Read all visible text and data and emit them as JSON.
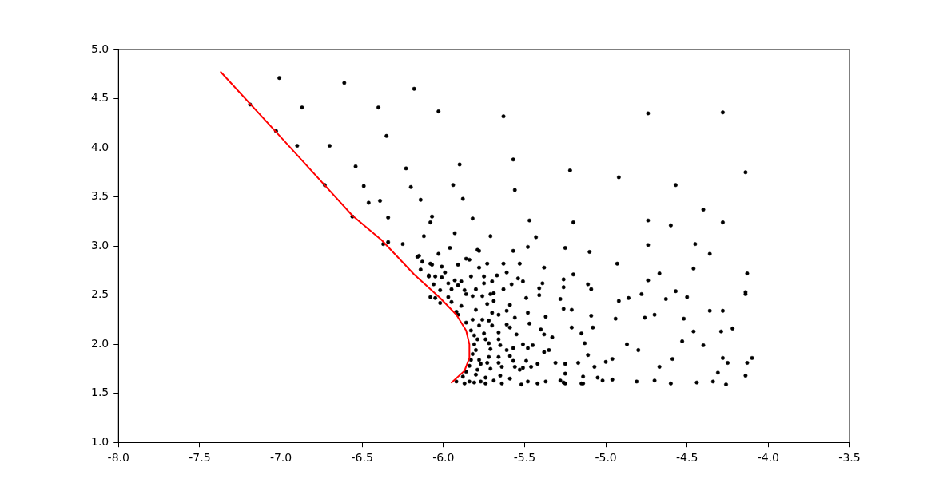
{
  "chart_data": {
    "type": "scatter",
    "xlim": [
      -8.0,
      -3.5
    ],
    "ylim": [
      1.0,
      5.0
    ],
    "xticks": [
      {
        "value": -8,
        "label": "-8.0"
      },
      {
        "value": -7.5,
        "label": "-7.5"
      },
      {
        "value": -7,
        "label": "-7.0"
      },
      {
        "value": -6.5,
        "label": "-6.5"
      },
      {
        "value": -6,
        "label": "-6.0"
      },
      {
        "value": -5.5,
        "label": "-5.5"
      },
      {
        "value": -5,
        "label": "-5.0"
      },
      {
        "value": -4.5,
        "label": "-4.5"
      },
      {
        "value": -4,
        "label": "-4.0"
      },
      {
        "value": -3.5,
        "label": "-3.5"
      }
    ],
    "yticks": [
      {
        "value": 1,
        "label": "1.0"
      },
      {
        "value": 1.5,
        "label": "1.5"
      },
      {
        "value": 2,
        "label": "2.0"
      },
      {
        "value": 2.5,
        "label": "2.5"
      },
      {
        "value": 3,
        "label": "3.0"
      },
      {
        "value": 3.5,
        "label": "3.5"
      },
      {
        "value": 4,
        "label": "4.0"
      },
      {
        "value": 4.5,
        "label": "4.5"
      },
      {
        "value": 5,
        "label": "5.0"
      }
    ],
    "grid": false,
    "legend": false,
    "series": [
      {
        "type": "scatter",
        "marker": "circle",
        "color": "#000000",
        "x": [
          -7.01,
          -6.61,
          -6.18,
          -6.03,
          -5.63,
          -4.74,
          -4.28,
          -6.87,
          -6.4,
          -6.35,
          -6.7,
          -5.9,
          -5.57,
          -6.54,
          -6.23,
          -5.22,
          -4.14,
          -4.92,
          -5.94,
          -6.49,
          -6.2,
          -4.57,
          -5.56,
          -5.88,
          -6.39,
          -6.46,
          -6.14,
          -4.4,
          -5.82,
          -6.07,
          -5.47,
          -5.2,
          -4.74,
          -4.28,
          -6.08,
          -4.6,
          -6.34,
          -5.93,
          -6.12,
          -5.71,
          -5.43,
          -4.74,
          -4.45,
          -4.36,
          -6.25,
          -6.34,
          -5.79,
          -5.48,
          -5.25,
          -5.1,
          -4.13,
          -6.03,
          -6.16,
          -5.86,
          -5.63,
          -5.38,
          -6.07,
          -5.99,
          -5.78,
          -4.93,
          -4.67,
          -4.46,
          -6.09,
          -5.93,
          -5.7,
          -5.54,
          -5.26,
          -5.11,
          -4.74,
          -4.57,
          -5.95,
          -4.14,
          -4.14,
          -5.69,
          -5.41,
          -5.28,
          -4.86,
          -4.78,
          -4.5,
          -6.05,
          -4.92,
          -4.63,
          -4.36,
          -4.28,
          -4.7,
          -4.94,
          -4.76,
          -4.52,
          -4.22,
          -4.29,
          -4.46,
          -5.15,
          -5.38,
          -4.53,
          -4.87,
          -4.4,
          -4.8,
          -4.1,
          -4.13,
          -4.96,
          -5.0,
          -4.59,
          -4.67,
          -4.28,
          -4.25,
          -4.31,
          -4.14,
          -4.81,
          -4.6,
          -4.34,
          -4.26,
          -4.44,
          -4.7,
          -4.96,
          -5.02,
          -5.15,
          -5.26,
          -5.25,
          -5.96,
          -5.78,
          -5.57,
          -6.15,
          -5.84,
          -5.73,
          -5.53,
          -6.13,
          -6.08,
          -6.01,
          -5.91,
          -6.14,
          -6.09,
          -6.05,
          -6.01,
          -5.89,
          -5.83,
          -5.75,
          -5.67,
          -5.61,
          -5.51,
          -5.2,
          -6.06,
          -5.97,
          -5.91,
          -5.75,
          -5.8,
          -5.63,
          -5.58,
          -5.39,
          -6.02,
          -5.87,
          -5.86,
          -5.97,
          -5.82,
          -5.76,
          -5.71,
          -5.69,
          -5.59,
          -5.49,
          -5.41,
          -5.26,
          -5.09,
          -6.02,
          -5.95,
          -5.89,
          -5.8,
          -5.73,
          -5.7,
          -5.66,
          -5.61,
          -5.56,
          -5.48,
          -5.37,
          -5.26,
          -5.21,
          -5.09,
          -5.92,
          -5.91,
          -5.86,
          -5.82,
          -5.78,
          -5.76,
          -5.72,
          -5.7,
          -5.66,
          -5.61,
          -5.59,
          -5.55,
          -5.47,
          -5.4,
          -5.33,
          -5.21,
          -5.08,
          -5.83,
          -5.81,
          -5.79,
          -5.81,
          -5.8,
          -5.75,
          -5.74,
          -5.72,
          -5.71,
          -5.66,
          -5.65,
          -5.61,
          -5.57,
          -5.51,
          -5.48,
          -5.45,
          -5.38,
          -5.35,
          -5.13,
          -5.11,
          -5.82,
          -5.83,
          -5.84,
          -5.86,
          -5.88,
          -5.78,
          -5.77,
          -5.79,
          -5.8,
          -5.72,
          -5.73,
          -5.71,
          -5.74,
          -5.66,
          -5.66,
          -5.64,
          -5.65,
          -5.59,
          -5.57,
          -5.56,
          -5.53,
          -5.49,
          -5.51,
          -5.46,
          -5.42,
          -5.31,
          -5.25,
          -5.17,
          -5.07,
          -5.92,
          -5.87,
          -5.84,
          -5.81,
          -5.77,
          -5.74,
          -5.69,
          -5.64,
          -5.59,
          -5.52,
          -5.48,
          -5.42,
          -5.37,
          -5.28,
          -5.25,
          -5.14,
          -5.14,
          -5.05,
          -7.19,
          -7.03,
          -6.9,
          -6.73,
          -6.56,
          -6.37,
          -6.08
        ],
        "values": [
          4.71,
          4.66,
          4.6,
          4.37,
          4.32,
          4.35,
          4.36,
          4.41,
          4.41,
          4.12,
          4.02,
          3.83,
          3.88,
          3.81,
          3.79,
          3.77,
          3.75,
          3.7,
          3.62,
          3.61,
          3.6,
          3.62,
          3.57,
          3.48,
          3.46,
          3.44,
          3.47,
          3.37,
          3.28,
          3.3,
          3.26,
          3.24,
          3.26,
          3.24,
          3.24,
          3.21,
          3.29,
          3.13,
          3.1,
          3.1,
          3.09,
          3.01,
          3.02,
          2.92,
          3.02,
          3.04,
          2.96,
          2.99,
          2.98,
          2.94,
          2.72,
          2.92,
          2.89,
          2.87,
          2.82,
          2.78,
          2.81,
          2.73,
          2.78,
          2.82,
          2.72,
          2.77,
          2.69,
          2.65,
          2.64,
          2.67,
          2.66,
          2.61,
          2.65,
          2.54,
          2.56,
          2.53,
          2.51,
          2.52,
          2.5,
          2.46,
          2.47,
          2.51,
          2.48,
          2.47,
          2.44,
          2.46,
          2.34,
          2.34,
          2.3,
          2.26,
          2.27,
          2.26,
          2.16,
          2.13,
          2.13,
          2.11,
          2.1,
          2.03,
          2.0,
          1.99,
          1.94,
          1.86,
          1.81,
          1.85,
          1.82,
          1.85,
          1.77,
          1.86,
          1.81,
          1.71,
          1.68,
          1.62,
          1.6,
          1.62,
          1.59,
          1.61,
          1.63,
          1.64,
          1.63,
          1.6,
          1.61,
          1.7,
          2.98,
          2.95,
          2.95,
          2.9,
          2.86,
          2.82,
          2.82,
          2.84,
          2.82,
          2.79,
          2.81,
          2.76,
          2.7,
          2.69,
          2.68,
          2.64,
          2.69,
          2.69,
          2.7,
          2.73,
          2.64,
          2.71,
          2.61,
          2.62,
          2.6,
          2.62,
          2.56,
          2.56,
          2.61,
          2.62,
          2.55,
          2.55,
          2.51,
          2.48,
          2.49,
          2.49,
          2.51,
          2.44,
          2.4,
          2.47,
          2.57,
          2.58,
          2.56,
          2.42,
          2.43,
          2.39,
          2.35,
          2.41,
          2.32,
          2.3,
          2.34,
          2.27,
          2.32,
          2.28,
          2.36,
          2.35,
          2.29,
          2.33,
          2.3,
          2.22,
          2.25,
          2.19,
          2.25,
          2.24,
          2.19,
          2.12,
          2.2,
          2.17,
          2.1,
          2.21,
          2.15,
          2.07,
          2.17,
          2.17,
          2.14,
          2.09,
          2.05,
          2.0,
          1.94,
          2.11,
          2.05,
          2.01,
          1.95,
          2.05,
          1.99,
          1.94,
          1.96,
          2.0,
          1.96,
          1.99,
          1.92,
          1.94,
          2.01,
          1.89,
          1.9,
          1.84,
          1.78,
          1.72,
          1.67,
          1.84,
          1.8,
          1.74,
          1.69,
          1.87,
          1.81,
          1.75,
          1.66,
          1.87,
          1.81,
          1.77,
          1.68,
          1.88,
          1.83,
          1.77,
          1.74,
          1.83,
          1.76,
          1.77,
          1.8,
          1.81,
          1.8,
          1.81,
          1.77,
          1.62,
          1.6,
          1.62,
          1.61,
          1.62,
          1.6,
          1.63,
          1.6,
          1.65,
          1.59,
          1.62,
          1.6,
          1.62,
          1.63,
          1.6,
          1.6,
          1.67,
          1.66,
          4.44,
          4.17,
          4.02,
          3.62,
          3.3,
          3.02,
          2.48
        ]
      },
      {
        "type": "line",
        "marker": "none",
        "line_style": "solid",
        "color": "#ff0000",
        "x": [
          -7.37,
          -6.98,
          -6.56,
          -6.38,
          -6.18,
          -6.02,
          -5.92,
          -5.86,
          -5.84,
          -5.84,
          -5.87,
          -5.95
        ],
        "values": [
          4.77,
          4.07,
          3.31,
          3.06,
          2.71,
          2.47,
          2.3,
          2.14,
          2.0,
          1.86,
          1.73,
          1.61
        ]
      }
    ]
  }
}
